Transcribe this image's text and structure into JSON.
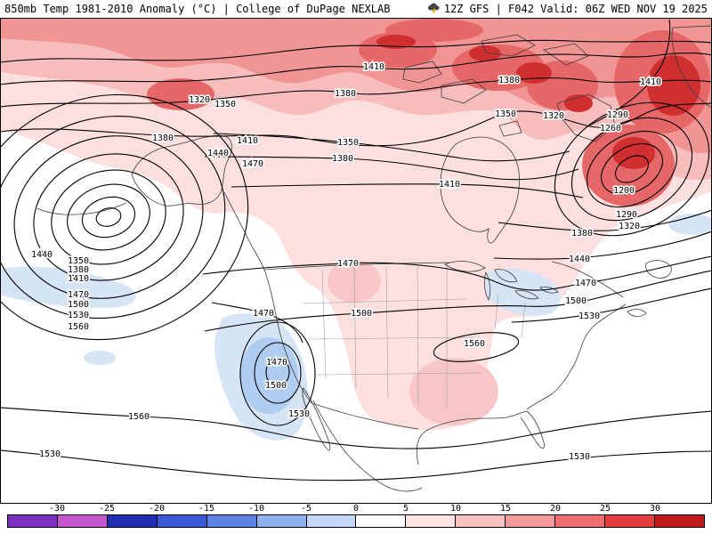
{
  "header": {
    "left_title": "850mb Temp 1981-2010 Anomaly (°C) | College of DuPage NEXLAB",
    "right_title": "12Z GFS | F042 Valid: 06Z WED NOV 19 2025"
  },
  "chart_data": {
    "type": "heatmap",
    "title": "850mb Temp 1981-2010 Anomaly (°C)",
    "source": "College of DuPage NEXLAB",
    "model": "GFS",
    "model_run": "12Z",
    "forecast_hour": "F042",
    "valid_time": "06Z WED NOV 19 2025",
    "shaded_field_units": "°C",
    "contour_labels": [
      [
        1410,
        420,
        75
      ],
      [
        1380,
        388,
        105
      ],
      [
        1320,
        224,
        112
      ],
      [
        1350,
        253,
        117
      ],
      [
        1380,
        183,
        155
      ],
      [
        1410,
        278,
        158
      ],
      [
        1440,
        245,
        172
      ],
      [
        1470,
        284,
        184
      ],
      [
        1350,
        391,
        160
      ],
      [
        1380,
        385,
        178
      ],
      [
        1410,
        505,
        207
      ],
      [
        1380,
        572,
        90
      ],
      [
        1350,
        568,
        128
      ],
      [
        1320,
        622,
        130
      ],
      [
        1290,
        694,
        129
      ],
      [
        1260,
        686,
        144
      ],
      [
        1410,
        731,
        92
      ],
      [
        1200,
        701,
        214
      ],
      [
        1290,
        704,
        241
      ],
      [
        1320,
        707,
        254
      ],
      [
        1380,
        654,
        262
      ],
      [
        1440,
        651,
        291
      ],
      [
        1470,
        658,
        318
      ],
      [
        1500,
        647,
        338
      ],
      [
        1530,
        662,
        355
      ],
      [
        1440,
        47,
        286
      ],
      [
        1350,
        88,
        293
      ],
      [
        1380,
        88,
        303
      ],
      [
        1410,
        88,
        313
      ],
      [
        1470,
        88,
        331
      ],
      [
        1500,
        88,
        342
      ],
      [
        1530,
        88,
        354
      ],
      [
        1560,
        88,
        367
      ],
      [
        1470,
        391,
        296
      ],
      [
        1470,
        296,
        352
      ],
      [
        1500,
        406,
        352
      ],
      [
        1470,
        311,
        407
      ],
      [
        1500,
        310,
        433
      ],
      [
        1530,
        336,
        465
      ],
      [
        1560,
        156,
        468
      ],
      [
        1560,
        533,
        386
      ],
      [
        1530,
        56,
        510
      ],
      [
        1530,
        651,
        513
      ]
    ],
    "colorbar": {
      "units": "°C",
      "ticks": [
        -30,
        -25,
        -20,
        -15,
        -10,
        -5,
        0,
        5,
        10,
        15,
        20,
        25,
        30
      ],
      "colors": [
        "#7d2fc0",
        "#c455cc",
        "#1f2db0",
        "#3b5bd6",
        "#5c84e4",
        "#8fb2ee",
        "#c3d8f7",
        "#ffffff",
        "#fde3e3",
        "#f9c2c2",
        "#f49a9a",
        "#ee6f6f",
        "#e33f3f",
        "#c01a1a"
      ]
    },
    "legend_position": "bottom",
    "positive_anomaly_color": "#e66767",
    "negative_anomaly_color": "#aecdf0"
  }
}
